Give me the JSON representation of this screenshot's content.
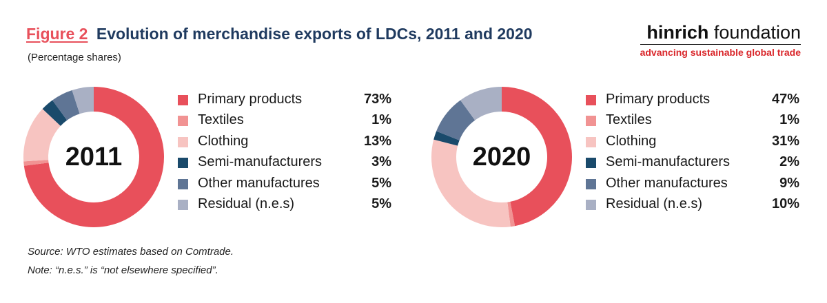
{
  "figure": {
    "label": "Figure 2",
    "title": "Evolution of merchandise exports of LDCs, 2011 and 2020",
    "subtitle": "(Percentage shares)"
  },
  "brand": {
    "name_bold": "hinrich",
    "name_light": "foundation",
    "tagline": "advancing sustainable global trade"
  },
  "chart_data": [
    {
      "type": "pie",
      "title": "2011",
      "categories": [
        "Primary products",
        "Textiles",
        "Clothing",
        "Semi-manufacturers",
        "Other manufactures",
        "Residual (n.e.s)"
      ],
      "values": [
        73,
        1,
        13,
        3,
        5,
        5
      ],
      "labels": [
        "73%",
        "1%",
        "13%",
        "3%",
        "5%",
        "5%"
      ],
      "colors": [
        "#e8505b",
        "#f19393",
        "#f7c4c1",
        "#1a4a6b",
        "#5f7595",
        "#a9b0c4"
      ]
    },
    {
      "type": "pie",
      "title": "2020",
      "categories": [
        "Primary products",
        "Textiles",
        "Clothing",
        "Semi-manufacturers",
        "Other manufactures",
        "Residual (n.e.s)"
      ],
      "values": [
        47,
        1,
        31,
        2,
        9,
        10
      ],
      "labels": [
        "47%",
        "1%",
        "31%",
        "2%",
        "9%",
        "10%"
      ],
      "colors": [
        "#e8505b",
        "#f19393",
        "#f7c4c1",
        "#1a4a6b",
        "#5f7595",
        "#a9b0c4"
      ]
    }
  ],
  "notes": {
    "source": "Source: WTO estimates based on Comtrade.",
    "note": "Note: “n.e.s.” is “not elsewhere specified”."
  }
}
